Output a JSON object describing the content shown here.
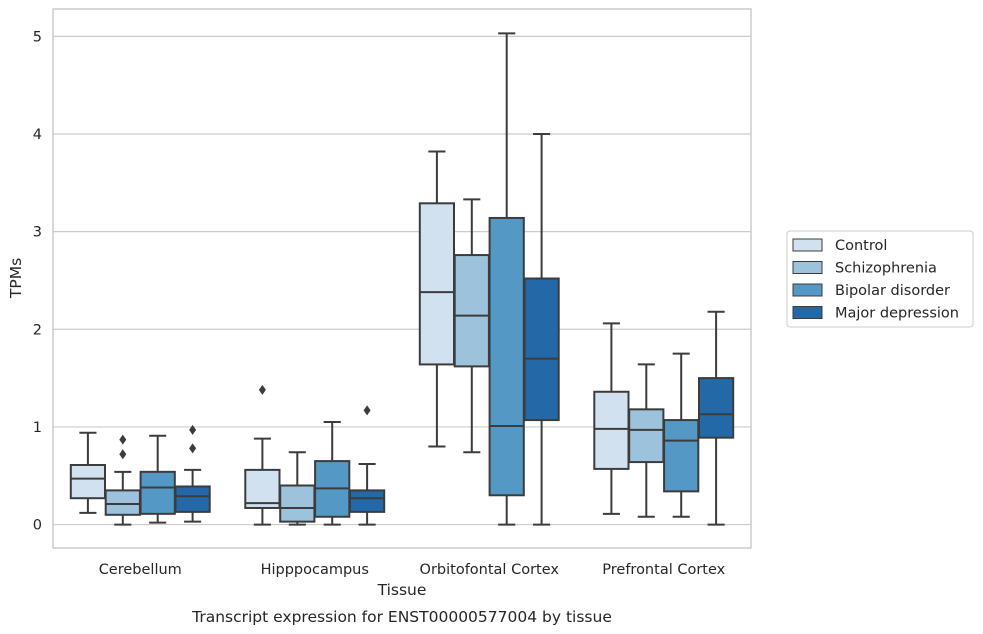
{
  "chart_data": {
    "type": "box",
    "caption": "Transcript expression for ENST00000577004 by tissue",
    "xlabel": "Tissue",
    "ylabel": "TPMs",
    "ylim": [
      -0.24,
      5.28
    ],
    "yticks": [
      0,
      1,
      2,
      3,
      4,
      5
    ],
    "grid": "horizontal",
    "legend_position": "right-center",
    "categories": [
      "Cerebellum",
      "Hipppocampus",
      "Orbitofontal Cortex",
      "Prefrontal Cortex"
    ],
    "series": [
      {
        "name": "Control",
        "color": "#d1e1f0",
        "boxes": [
          {
            "whislo": 0.12,
            "q1": 0.27,
            "med": 0.47,
            "q3": 0.61,
            "whishi": 0.94,
            "fliers": []
          },
          {
            "whislo": 0.0,
            "q1": 0.17,
            "med": 0.22,
            "q3": 0.56,
            "whishi": 0.88,
            "fliers": [
              1.38
            ]
          },
          {
            "whislo": 0.8,
            "q1": 1.64,
            "med": 2.38,
            "q3": 3.29,
            "whishi": 3.82,
            "fliers": []
          },
          {
            "whislo": 0.11,
            "q1": 0.57,
            "med": 0.98,
            "q3": 1.36,
            "whishi": 2.06,
            "fliers": []
          }
        ]
      },
      {
        "name": "Schizophrenia",
        "color": "#9cc3db",
        "boxes": [
          {
            "whislo": 0.0,
            "q1": 0.1,
            "med": 0.21,
            "q3": 0.35,
            "whishi": 0.54,
            "fliers": [
              0.72,
              0.87
            ]
          },
          {
            "whislo": 0.0,
            "q1": 0.03,
            "med": 0.17,
            "q3": 0.4,
            "whishi": 0.74,
            "fliers": []
          },
          {
            "whislo": 0.74,
            "q1": 1.62,
            "med": 2.14,
            "q3": 2.76,
            "whishi": 3.33,
            "fliers": []
          },
          {
            "whislo": 0.08,
            "q1": 0.64,
            "med": 0.97,
            "q3": 1.18,
            "whishi": 1.64,
            "fliers": []
          }
        ]
      },
      {
        "name": "Bipolar disorder",
        "color": "#5499c6",
        "boxes": [
          {
            "whislo": 0.02,
            "q1": 0.11,
            "med": 0.38,
            "q3": 0.54,
            "whishi": 0.91,
            "fliers": []
          },
          {
            "whislo": 0.0,
            "q1": 0.08,
            "med": 0.37,
            "q3": 0.65,
            "whishi": 1.05,
            "fliers": []
          },
          {
            "whislo": 0.0,
            "q1": 0.3,
            "med": 1.01,
            "q3": 3.14,
            "whishi": 5.03,
            "fliers": []
          },
          {
            "whislo": 0.08,
            "q1": 0.34,
            "med": 0.86,
            "q3": 1.07,
            "whishi": 1.75,
            "fliers": []
          }
        ]
      },
      {
        "name": "Major depression",
        "color": "#2469a7",
        "boxes": [
          {
            "whislo": 0.03,
            "q1": 0.13,
            "med": 0.29,
            "q3": 0.39,
            "whishi": 0.56,
            "fliers": [
              0.78,
              0.97
            ]
          },
          {
            "whislo": 0.0,
            "q1": 0.13,
            "med": 0.27,
            "q3": 0.35,
            "whishi": 0.62,
            "fliers": [
              1.17
            ]
          },
          {
            "whislo": 0.0,
            "q1": 1.07,
            "med": 1.7,
            "q3": 2.52,
            "whishi": 4.0,
            "fliers": []
          },
          {
            "whislo": 0.0,
            "q1": 0.89,
            "med": 1.13,
            "q3": 1.5,
            "whishi": 2.18,
            "fliers": []
          }
        ]
      }
    ]
  },
  "colors": {
    "grid": "#cccccc",
    "frame": "#cccccc",
    "box_edge": "#3c3c3c",
    "text": "#262626"
  }
}
